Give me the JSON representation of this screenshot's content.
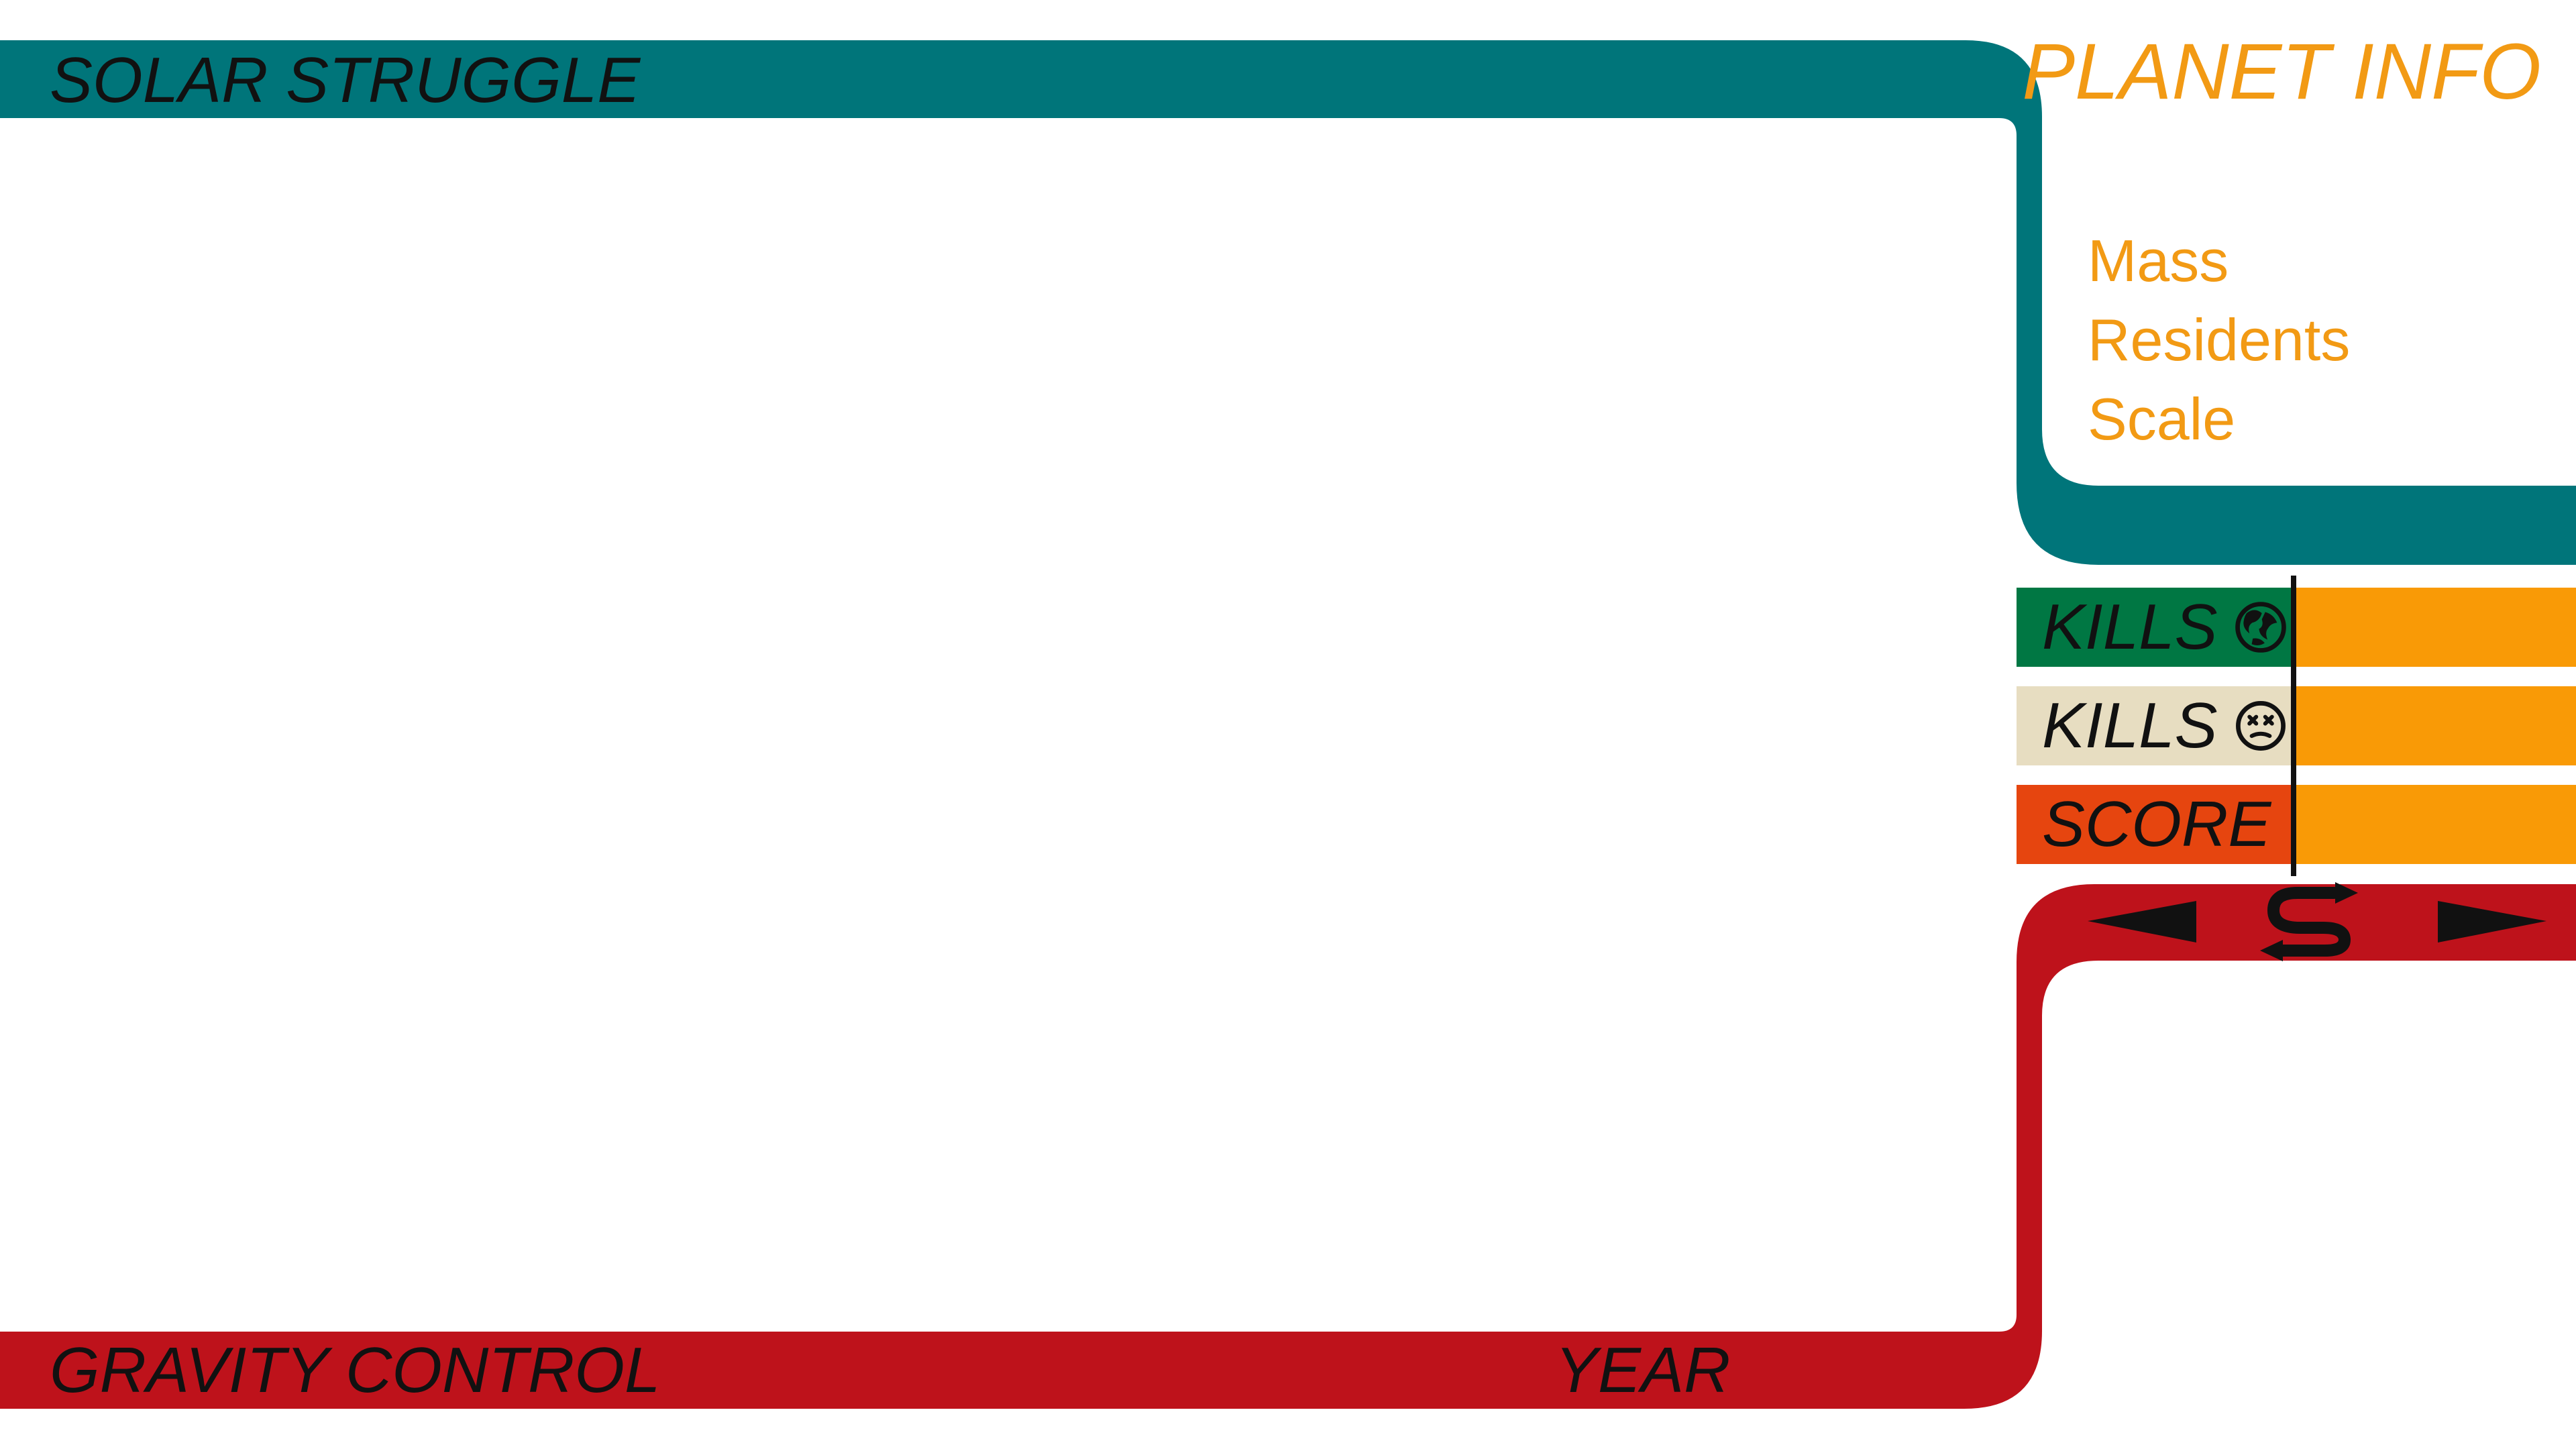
{
  "game": {
    "title": "SOLAR STRUGGLE"
  },
  "footer": {
    "gravity_label": "GRAVITY CONTROL",
    "year_label": "YEAR"
  },
  "planet_info": {
    "title": "PLANET INFO",
    "fields": [
      "Mass",
      "Residents",
      "Scale"
    ]
  },
  "stats": {
    "kills_planets_label": "KILLS",
    "kills_residents_label": "KILLS",
    "score_label": "SCORE",
    "kills_planets_value": "",
    "kills_residents_value": "",
    "score_value": ""
  },
  "icons": {
    "kills_planets": "planet-icon",
    "kills_residents": "dead-face-icon",
    "prev": "triangle-left-icon",
    "switch": "s-swap-icon",
    "next": "triangle-right-icon"
  },
  "colors": {
    "teal": "#00757A",
    "red": "#BE121B",
    "green": "#007743",
    "beige": "#E7DDC1",
    "orange_red": "#E6450F",
    "orange": "#F99A06",
    "text_orange": "#F29A14",
    "ink": "#111111"
  }
}
